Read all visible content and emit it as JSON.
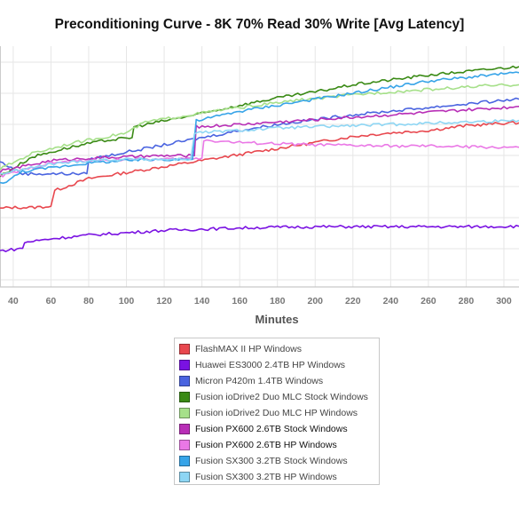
{
  "chart_data": {
    "type": "line",
    "title": "Preconditioning Curve - 8K 70% Read 30% Write [Avg Latency]",
    "xlabel": "Minutes",
    "ylabel": "",
    "xlim": [
      33,
      308
    ],
    "ylim": [
      0,
      10
    ],
    "x_ticks": [
      40,
      60,
      80,
      100,
      120,
      140,
      160,
      180,
      200,
      220,
      240,
      260,
      280,
      300
    ],
    "grid": true,
    "legend_position": "bottom",
    "series": [
      {
        "name": "FlashMAX II HP Windows",
        "color": "#e8474e",
        "line": [
          [
            33,
            3.25
          ],
          [
            38,
            3.3
          ],
          [
            50,
            3.3
          ],
          [
            60,
            3.35
          ],
          [
            62,
            4.0
          ],
          [
            80,
            4.5
          ],
          [
            100,
            4.75
          ],
          [
            120,
            5.0
          ],
          [
            140,
            5.25
          ],
          [
            160,
            5.5
          ],
          [
            180,
            5.75
          ],
          [
            200,
            6.0
          ],
          [
            220,
            6.25
          ],
          [
            240,
            6.4
          ],
          [
            260,
            6.5
          ],
          [
            280,
            6.7
          ],
          [
            300,
            6.8
          ],
          [
            308,
            6.82
          ]
        ]
      },
      {
        "name": "Huawei ES3000 2.4TB HP Windows",
        "color": "#7a12e2",
        "line": [
          [
            33,
            1.5
          ],
          [
            45,
            1.6
          ],
          [
            46,
            1.85
          ],
          [
            60,
            2.0
          ],
          [
            80,
            2.15
          ],
          [
            100,
            2.25
          ],
          [
            120,
            2.35
          ],
          [
            140,
            2.4
          ],
          [
            160,
            2.45
          ],
          [
            180,
            2.48
          ],
          [
            200,
            2.5
          ],
          [
            240,
            2.5
          ],
          [
            280,
            2.5
          ],
          [
            308,
            2.52
          ]
        ]
      },
      {
        "name": "Micron P420m 1.4TB Windows",
        "color": "#4a64e0",
        "line": [
          [
            33,
            5.2
          ],
          [
            45,
            4.7
          ],
          [
            79,
            4.7
          ],
          [
            80,
            5.3
          ],
          [
            100,
            5.6
          ],
          [
            120,
            5.9
          ],
          [
            140,
            6.2
          ],
          [
            160,
            6.5
          ],
          [
            180,
            6.75
          ],
          [
            200,
            6.95
          ],
          [
            220,
            7.15
          ],
          [
            240,
            7.3
          ],
          [
            260,
            7.45
          ],
          [
            280,
            7.6
          ],
          [
            300,
            7.75
          ],
          [
            308,
            7.8
          ]
        ]
      },
      {
        "name": "Fusion ioDrive2 Duo MLC Stock Windows",
        "color": "#3a8a15",
        "line": [
          [
            33,
            4.6
          ],
          [
            50,
            5.4
          ],
          [
            70,
            5.8
          ],
          [
            90,
            6.1
          ],
          [
            103,
            6.2
          ],
          [
            104,
            6.65
          ],
          [
            120,
            6.9
          ],
          [
            140,
            7.2
          ],
          [
            160,
            7.55
          ],
          [
            180,
            7.85
          ],
          [
            200,
            8.1
          ],
          [
            220,
            8.4
          ],
          [
            240,
            8.6
          ],
          [
            260,
            8.8
          ],
          [
            280,
            8.95
          ],
          [
            300,
            9.1
          ],
          [
            308,
            9.15
          ]
        ]
      },
      {
        "name": "Fusion ioDrive2 Duo MLC HP Windows",
        "color": "#a6e08a",
        "line": [
          [
            33,
            4.9
          ],
          [
            50,
            5.55
          ],
          [
            70,
            5.95
          ],
          [
            90,
            6.25
          ],
          [
            100,
            6.4
          ],
          [
            110,
            6.85
          ],
          [
            130,
            7.1
          ],
          [
            150,
            7.35
          ],
          [
            170,
            7.55
          ],
          [
            190,
            7.75
          ],
          [
            210,
            7.9
          ],
          [
            230,
            8.05
          ],
          [
            250,
            8.15
          ],
          [
            270,
            8.25
          ],
          [
            290,
            8.35
          ],
          [
            308,
            8.4
          ]
        ]
      },
      {
        "name": "Fusion PX600 2.6TB Stock Windows",
        "color": "#b82eb6",
        "line": [
          [
            33,
            4.8
          ],
          [
            60,
            5.25
          ],
          [
            80,
            5.35
          ],
          [
            100,
            5.4
          ],
          [
            120,
            5.45
          ],
          [
            136,
            5.45
          ],
          [
            137,
            6.65
          ],
          [
            160,
            6.75
          ],
          [
            180,
            6.85
          ],
          [
            200,
            6.95
          ],
          [
            220,
            7.05
          ],
          [
            240,
            7.15
          ],
          [
            260,
            7.25
          ],
          [
            280,
            7.35
          ],
          [
            300,
            7.45
          ],
          [
            308,
            7.5
          ]
        ]
      },
      {
        "name": "Fusion PX600 2.6TB HP Windows",
        "color": "#ea78e6",
        "line": [
          [
            33,
            4.6
          ],
          [
            60,
            5.15
          ],
          [
            80,
            5.25
          ],
          [
            100,
            5.3
          ],
          [
            120,
            5.3
          ],
          [
            140,
            5.35
          ],
          [
            141,
            6.1
          ],
          [
            160,
            6.0
          ],
          [
            180,
            5.95
          ],
          [
            200,
            5.9
          ],
          [
            220,
            5.88
          ],
          [
            240,
            5.85
          ],
          [
            260,
            5.85
          ],
          [
            280,
            5.82
          ],
          [
            300,
            5.8
          ],
          [
            308,
            5.8
          ]
        ]
      },
      {
        "name": "Fusion SX300 3.2TB Stock Windows",
        "color": "#37a4e8",
        "line": [
          [
            33,
            4.3
          ],
          [
            38,
            4.45
          ],
          [
            45,
            4.8
          ],
          [
            60,
            4.95
          ],
          [
            80,
            5.15
          ],
          [
            100,
            5.25
          ],
          [
            120,
            5.3
          ],
          [
            135,
            5.3
          ],
          [
            137,
            6.9
          ],
          [
            160,
            7.3
          ],
          [
            180,
            7.55
          ],
          [
            200,
            7.8
          ],
          [
            220,
            8.05
          ],
          [
            240,
            8.3
          ],
          [
            260,
            8.55
          ],
          [
            280,
            8.7
          ],
          [
            300,
            8.85
          ],
          [
            308,
            8.9
          ]
        ]
      },
      {
        "name": "Fusion SX300 3.2TB HP Windows",
        "color": "#8ed6f4",
        "line": [
          [
            33,
            4.7
          ],
          [
            60,
            5.1
          ],
          [
            80,
            5.25
          ],
          [
            100,
            5.3
          ],
          [
            120,
            5.3
          ],
          [
            134,
            5.3
          ],
          [
            136,
            6.4
          ],
          [
            160,
            6.5
          ],
          [
            180,
            6.6
          ],
          [
            200,
            6.65
          ],
          [
            220,
            6.7
          ],
          [
            240,
            6.75
          ],
          [
            260,
            6.8
          ],
          [
            280,
            6.85
          ],
          [
            300,
            6.9
          ],
          [
            308,
            6.92
          ]
        ]
      }
    ]
  }
}
